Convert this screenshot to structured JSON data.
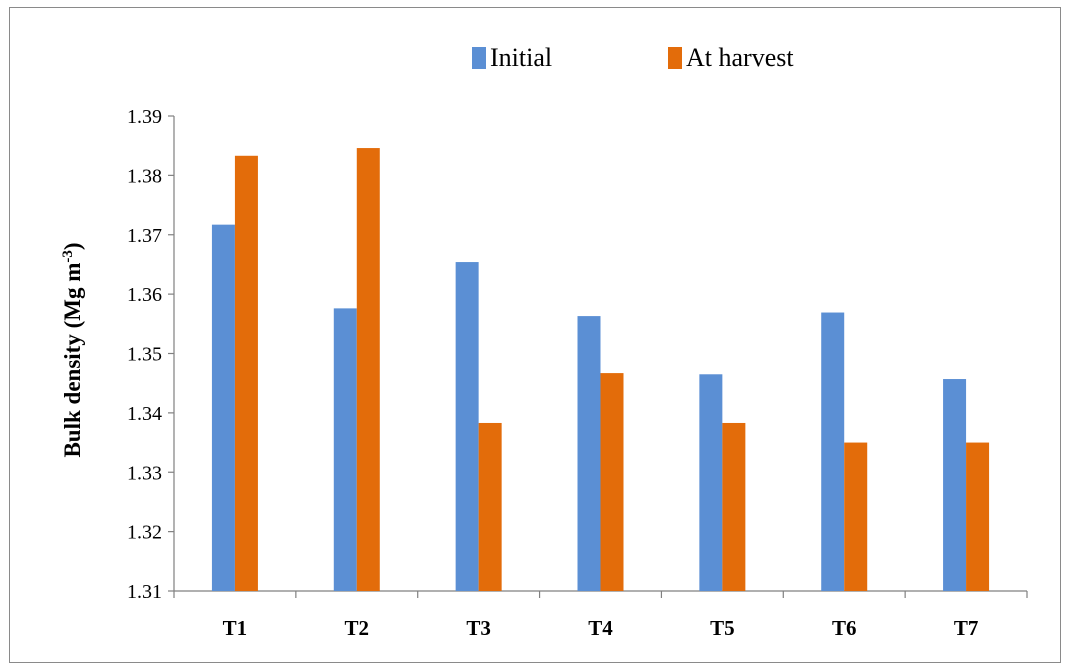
{
  "chart_data": {
    "type": "bar",
    "categories": [
      "T1",
      "T2",
      "T3",
      "T4",
      "T5",
      "T6",
      "T7"
    ],
    "series": [
      {
        "name": "Initial",
        "values": [
          1.3717,
          1.3576,
          1.3654,
          1.3563,
          1.3465,
          1.3569,
          1.3457
        ],
        "color": "#5B8FD4"
      },
      {
        "name": "At harvest",
        "values": [
          1.3833,
          1.3846,
          1.3383,
          1.3467,
          1.3383,
          1.335,
          1.335
        ],
        "color": "#E36C0A"
      }
    ],
    "title": "",
    "xlabel": "",
    "ylabel": "Bulk density (Mg m",
    "ylabel_sup": "-3",
    "ylabel_close": ")",
    "ylim": [
      1.31,
      1.39
    ],
    "yticks": [
      "1.31",
      "1.32",
      "1.33",
      "1.34",
      "1.35",
      "1.36",
      "1.37",
      "1.38",
      "1.39"
    ],
    "grid": false,
    "legend": "top"
  }
}
